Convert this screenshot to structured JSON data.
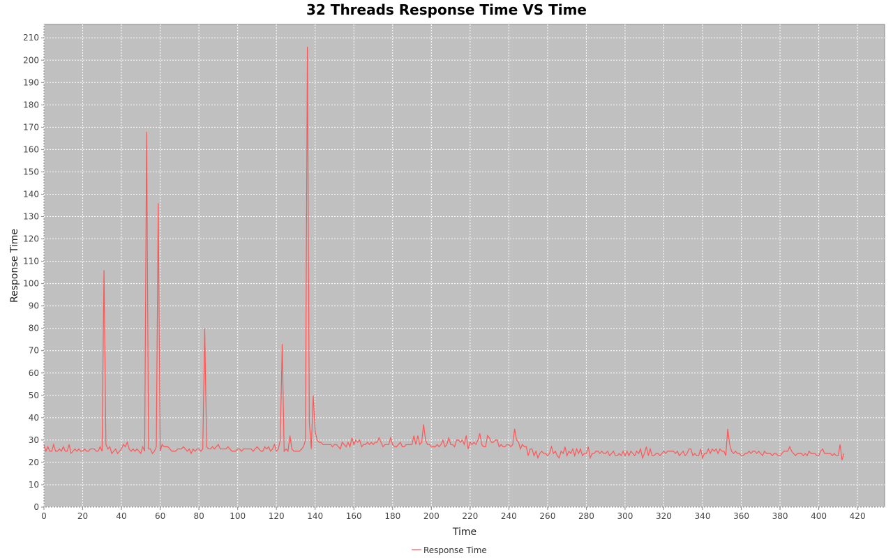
{
  "chart_data": {
    "type": "line",
    "title": "32 Threads Response Time VS Time",
    "x_label": "Time",
    "y_label": "Response Time",
    "xlim": [
      0,
      434
    ],
    "ylim": [
      0,
      216
    ],
    "xticks": [
      0,
      20,
      40,
      60,
      80,
      100,
      120,
      140,
      160,
      180,
      200,
      220,
      240,
      260,
      280,
      300,
      320,
      340,
      360,
      380,
      400,
      420
    ],
    "yticks": [
      0,
      10,
      20,
      30,
      40,
      50,
      60,
      70,
      80,
      90,
      100,
      110,
      120,
      130,
      140,
      150,
      160,
      170,
      180,
      190,
      200,
      210
    ],
    "grid": true,
    "legend": "bottom",
    "x": [
      0,
      1,
      2,
      3,
      4,
      5,
      6,
      7,
      8,
      9,
      10,
      11,
      12,
      13,
      14,
      15,
      16,
      17,
      18,
      19,
      20,
      21,
      22,
      23,
      24,
      25,
      26,
      27,
      28,
      29,
      30,
      31,
      32,
      33,
      34,
      35,
      36,
      37,
      38,
      39,
      40,
      41,
      42,
      43,
      44,
      45,
      46,
      47,
      48,
      49,
      50,
      51,
      52,
      53,
      54,
      55,
      56,
      57,
      58,
      59,
      60,
      61,
      62,
      63,
      64,
      65,
      66,
      67,
      68,
      69,
      70,
      71,
      72,
      73,
      74,
      75,
      76,
      77,
      78,
      79,
      80,
      81,
      82,
      83,
      84,
      85,
      86,
      87,
      88,
      89,
      90,
      91,
      92,
      93,
      94,
      95,
      96,
      97,
      98,
      99,
      100,
      101,
      102,
      103,
      104,
      105,
      106,
      107,
      108,
      109,
      110,
      111,
      112,
      113,
      114,
      115,
      116,
      117,
      118,
      119,
      120,
      121,
      122,
      123,
      124,
      125,
      126,
      127,
      128,
      129,
      130,
      131,
      132,
      133,
      134,
      135,
      136,
      137,
      138,
      139,
      140,
      141,
      142,
      143,
      144,
      145,
      146,
      147,
      148,
      149,
      150,
      151,
      152,
      153,
      154,
      155,
      156,
      157,
      158,
      159,
      160,
      161,
      162,
      163,
      164,
      165,
      166,
      167,
      168,
      169,
      170,
      171,
      172,
      173,
      174,
      175,
      176,
      177,
      178,
      179,
      180,
      181,
      182,
      183,
      184,
      185,
      186,
      187,
      188,
      189,
      190,
      191,
      192,
      193,
      194,
      195,
      196,
      197,
      198,
      199,
      200,
      201,
      202,
      203,
      204,
      205,
      206,
      207,
      208,
      209,
      210,
      211,
      212,
      213,
      214,
      215,
      216,
      217,
      218,
      219,
      220,
      221,
      222,
      223,
      224,
      225,
      226,
      227,
      228,
      229,
      230,
      231,
      232,
      233,
      234,
      235,
      236,
      237,
      238,
      239,
      240,
      241,
      242,
      243,
      244,
      245,
      246,
      247,
      248,
      249,
      250,
      251,
      252,
      253,
      254,
      255,
      256,
      257,
      258,
      259,
      260,
      261,
      262,
      263,
      264,
      265,
      266,
      267,
      268,
      269,
      270,
      271,
      272,
      273,
      274,
      275,
      276,
      277,
      278,
      279,
      280,
      281,
      282,
      283,
      284,
      285,
      286,
      287,
      288,
      289,
      290,
      291,
      292,
      293,
      294,
      295,
      296,
      297,
      298,
      299,
      300,
      301,
      302,
      303,
      304,
      305,
      306,
      307,
      308,
      309,
      310,
      311,
      312,
      313,
      314,
      315,
      316,
      317,
      318,
      319,
      320,
      321,
      322,
      323,
      324,
      325,
      326,
      327,
      328,
      329,
      330,
      331,
      332,
      333,
      334,
      335,
      336,
      337,
      338,
      339,
      340,
      341,
      342,
      343,
      344,
      345,
      346,
      347,
      348,
      349,
      350,
      351,
      352,
      353,
      354,
      355,
      356,
      357,
      358,
      359,
      360,
      361,
      362,
      363,
      364,
      365,
      366,
      367,
      368,
      369,
      370,
      371,
      372,
      373,
      374,
      375,
      376,
      377,
      378,
      379,
      380,
      381,
      382,
      383,
      384,
      385,
      386,
      387,
      388,
      389,
      390,
      391,
      392,
      393,
      394,
      395,
      396,
      397,
      398,
      399,
      400,
      401,
      402,
      403,
      404,
      405,
      406,
      407,
      408,
      409,
      410,
      411,
      412,
      413
    ],
    "series": [
      {
        "name": "Response Time",
        "color": "#ff5555",
        "values": [
          28,
          25,
          27,
          25,
          25,
          28,
          25,
          25,
          26,
          25,
          27,
          25,
          25,
          28,
          24,
          25,
          26,
          25,
          26,
          25,
          25,
          26,
          25,
          25,
          26,
          26,
          26,
          25,
          25,
          27,
          25,
          106,
          28,
          26,
          27,
          24,
          25,
          26,
          24,
          25,
          26,
          28,
          27,
          29,
          26,
          25,
          26,
          25,
          26,
          25,
          24,
          27,
          25,
          168,
          26,
          26,
          24,
          25,
          27,
          136,
          25,
          28,
          27,
          27,
          27,
          26,
          25,
          25,
          25,
          26,
          26,
          26,
          27,
          26,
          25,
          26,
          24,
          26,
          25,
          26,
          26,
          25,
          26,
          80,
          27,
          26,
          26,
          27,
          26,
          27,
          28,
          26,
          26,
          26,
          26,
          27,
          26,
          25,
          25,
          25,
          26,
          26,
          25,
          26,
          26,
          26,
          26,
          26,
          25,
          26,
          27,
          26,
          25,
          25,
          27,
          26,
          27,
          25,
          26,
          28,
          25,
          26,
          30,
          73,
          25,
          26,
          25,
          32,
          26,
          25,
          25,
          25,
          25,
          26,
          27,
          30,
          206,
          38,
          26,
          50,
          34,
          30,
          29,
          29,
          28,
          28,
          28,
          28,
          28,
          27,
          28,
          28,
          27,
          26,
          29,
          28,
          27,
          29,
          27,
          31,
          28,
          30,
          29,
          30,
          27,
          28,
          28,
          29,
          28,
          29,
          28,
          29,
          29,
          31,
          29,
          27,
          28,
          28,
          28,
          31,
          28,
          27,
          27,
          28,
          29,
          27,
          27,
          28,
          28,
          28,
          28,
          32,
          28,
          32,
          28,
          29,
          37,
          30,
          28,
          28,
          27,
          27,
          27,
          28,
          27,
          28,
          30,
          27,
          28,
          31,
          28,
          28,
          27,
          30,
          30,
          29,
          30,
          28,
          32,
          26,
          29,
          28,
          29,
          28,
          30,
          33,
          28,
          27,
          27,
          32,
          31,
          29,
          29,
          30,
          30,
          27,
          28,
          27,
          27,
          28,
          28,
          27,
          28,
          35,
          30,
          29,
          26,
          28,
          27,
          27,
          23,
          26,
          26,
          23,
          25,
          22,
          24,
          25,
          24,
          24,
          23,
          24,
          27,
          24,
          25,
          23,
          22,
          25,
          24,
          27,
          23,
          25,
          24,
          26,
          23,
          26,
          24,
          26,
          23,
          24,
          24,
          27,
          22,
          24,
          24,
          25,
          25,
          24,
          25,
          24,
          24,
          25,
          23,
          24,
          25,
          23,
          23,
          24,
          23,
          25,
          23,
          25,
          23,
          25,
          24,
          23,
          25,
          24,
          26,
          22,
          24,
          27,
          23,
          26,
          23,
          23,
          24,
          24,
          23,
          24,
          25,
          24,
          25,
          25,
          25,
          25,
          24,
          25,
          23,
          24,
          25,
          23,
          24,
          26,
          26,
          23,
          24,
          23,
          23,
          26,
          22,
          24,
          24,
          26,
          24,
          26,
          25,
          26,
          24,
          26,
          25,
          25,
          23,
          35,
          28,
          25,
          24,
          25,
          24,
          24,
          23,
          23,
          24,
          24,
          25,
          24,
          25,
          25,
          24,
          25,
          24,
          23,
          25,
          24,
          24,
          24,
          23,
          24,
          24,
          23,
          23,
          24,
          25,
          25,
          25,
          27,
          25,
          24,
          23,
          24,
          24,
          24,
          23,
          24,
          23,
          25,
          24,
          24,
          24,
          23,
          23,
          25,
          26,
          24,
          24,
          24,
          24,
          23,
          24,
          23,
          23,
          28,
          21,
          24
        ]
      }
    ]
  }
}
